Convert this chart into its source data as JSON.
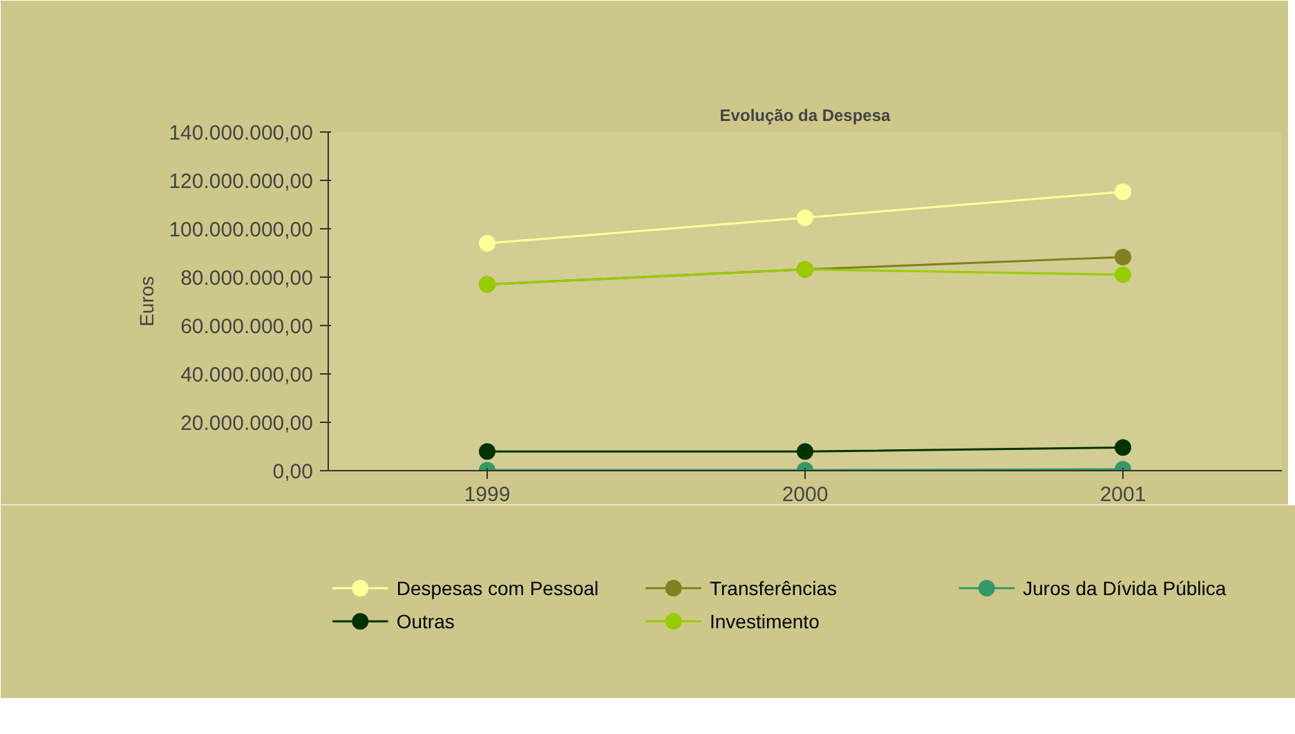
{
  "chart_data": {
    "type": "line",
    "title": "Evolução da Despesa",
    "ylabel": "Euros",
    "categories": [
      "1999",
      "2000",
      "2001"
    ],
    "series": [
      {
        "name": "Despesas com Pessoal",
        "color": "#ffff99",
        "values": [
          94000000,
          104600000,
          115300000
        ]
      },
      {
        "name": "Transferências",
        "color": "#808020",
        "values": [
          77000000,
          83200000,
          88300000
        ]
      },
      {
        "name": "Juros da Dívida Pública",
        "color": "#339966",
        "values": [
          200000,
          200000,
          600000
        ]
      },
      {
        "name": "Outras",
        "color": "#003300",
        "values": [
          7900000,
          7900000,
          9600000
        ]
      },
      {
        "name": "Investimento",
        "color": "#99cc00",
        "values": [
          77000000,
          83200000,
          81000000
        ]
      }
    ],
    "ylim": [
      0,
      140000000
    ],
    "yticks": [
      {
        "value": 0,
        "label": "0,00"
      },
      {
        "value": 20000000,
        "label": "20.000.000,00"
      },
      {
        "value": 40000000,
        "label": "40.000.000,00"
      },
      {
        "value": 60000000,
        "label": "60.000.000,00"
      },
      {
        "value": 80000000,
        "label": "80.000.000,00"
      },
      {
        "value": 100000000,
        "label": "100.000.000,00"
      },
      {
        "value": 120000000,
        "label": "120.000.000,00"
      },
      {
        "value": 140000000,
        "label": "140.000.000,00"
      }
    ],
    "marker": "circle",
    "line_style": "solid",
    "grid": false,
    "legend": "bottom"
  }
}
